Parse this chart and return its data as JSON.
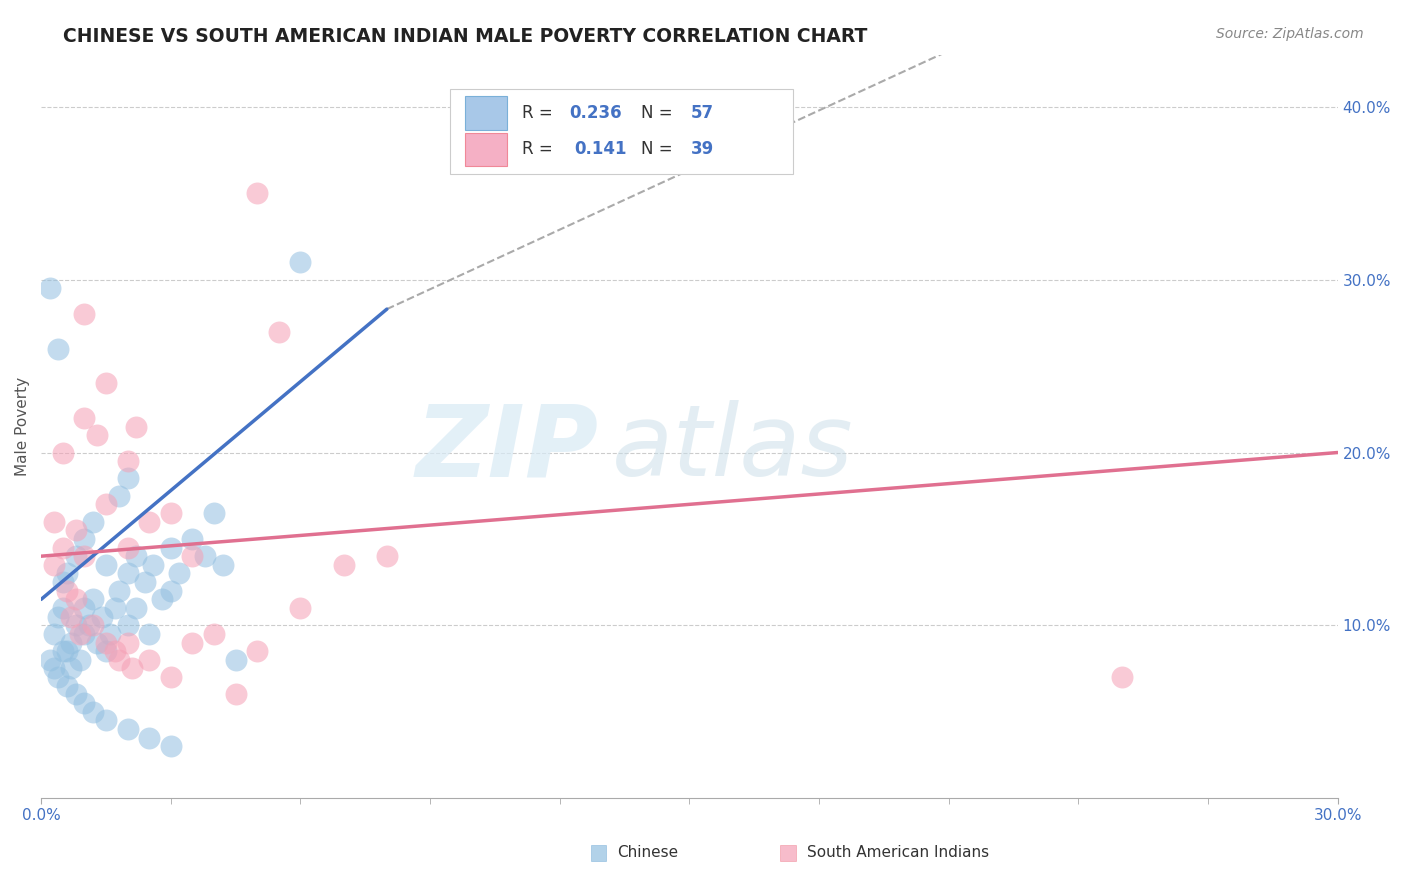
{
  "title": "CHINESE VS SOUTH AMERICAN INDIAN MALE POVERTY CORRELATION CHART",
  "source": "Source: ZipAtlas.com",
  "ylabel_label": "Male Poverty",
  "xlim": [
    0.0,
    30.0
  ],
  "ylim": [
    0.0,
    43.0
  ],
  "watermark_zip": "ZIP",
  "watermark_atlas": "atlas",
  "chinese_color": "#92bfe0",
  "sam_indian_color": "#f5a0b5",
  "chinese_line_color": "#4472c4",
  "sam_line_color": "#e07090",
  "dashed_line_color": "#aaaaaa",
  "legend_box_color": "#f5f5f5",
  "legend_r1": "R = 0.236",
  "legend_n1": "N = 57",
  "legend_r2": "R =  0.141",
  "legend_n2": "N = 39",
  "legend_blue_box": "#a8c8e8",
  "legend_pink_box": "#f5b0c5",
  "blue_r_val": "0.236",
  "pink_r_val": "0.141",
  "blue_n_val": "57",
  "pink_n_val": "39",
  "bottom_label_chinese": "Chinese",
  "bottom_label_sam": "South American Indians",
  "chinese_scatter": [
    [
      0.2,
      8.0
    ],
    [
      0.3,
      9.5
    ],
    [
      0.4,
      10.5
    ],
    [
      0.5,
      11.0
    ],
    [
      0.5,
      12.5
    ],
    [
      0.6,
      8.5
    ],
    [
      0.6,
      13.0
    ],
    [
      0.7,
      9.0
    ],
    [
      0.8,
      10.0
    ],
    [
      0.8,
      14.0
    ],
    [
      0.9,
      8.0
    ],
    [
      1.0,
      9.5
    ],
    [
      1.0,
      11.0
    ],
    [
      1.0,
      15.0
    ],
    [
      1.1,
      10.0
    ],
    [
      1.2,
      11.5
    ],
    [
      1.2,
      16.0
    ],
    [
      1.3,
      9.0
    ],
    [
      1.4,
      10.5
    ],
    [
      1.5,
      8.5
    ],
    [
      1.5,
      13.5
    ],
    [
      1.6,
      9.5
    ],
    [
      1.7,
      11.0
    ],
    [
      1.8,
      12.0
    ],
    [
      1.8,
      17.5
    ],
    [
      2.0,
      10.0
    ],
    [
      2.0,
      13.0
    ],
    [
      2.0,
      18.5
    ],
    [
      2.2,
      11.0
    ],
    [
      2.2,
      14.0
    ],
    [
      2.4,
      12.5
    ],
    [
      2.5,
      9.5
    ],
    [
      2.6,
      13.5
    ],
    [
      2.8,
      11.5
    ],
    [
      3.0,
      12.0
    ],
    [
      3.0,
      14.5
    ],
    [
      3.2,
      13.0
    ],
    [
      3.5,
      15.0
    ],
    [
      3.8,
      14.0
    ],
    [
      4.0,
      16.5
    ],
    [
      4.2,
      13.5
    ],
    [
      4.5,
      8.0
    ],
    [
      0.3,
      7.5
    ],
    [
      0.4,
      7.0
    ],
    [
      0.5,
      8.5
    ],
    [
      0.6,
      6.5
    ],
    [
      0.7,
      7.5
    ],
    [
      0.8,
      6.0
    ],
    [
      1.0,
      5.5
    ],
    [
      1.2,
      5.0
    ],
    [
      1.5,
      4.5
    ],
    [
      2.0,
      4.0
    ],
    [
      2.5,
      3.5
    ],
    [
      3.0,
      3.0
    ],
    [
      6.0,
      31.0
    ],
    [
      0.2,
      29.5
    ],
    [
      0.4,
      26.0
    ]
  ],
  "sam_scatter": [
    [
      0.3,
      13.5
    ],
    [
      0.5,
      14.5
    ],
    [
      0.6,
      12.0
    ],
    [
      0.7,
      10.5
    ],
    [
      0.8,
      11.5
    ],
    [
      0.9,
      9.5
    ],
    [
      1.0,
      14.0
    ],
    [
      1.0,
      22.0
    ],
    [
      1.2,
      10.0
    ],
    [
      1.3,
      21.0
    ],
    [
      1.5,
      9.0
    ],
    [
      1.5,
      24.0
    ],
    [
      1.7,
      8.5
    ],
    [
      1.8,
      8.0
    ],
    [
      2.0,
      9.0
    ],
    [
      2.0,
      14.5
    ],
    [
      2.1,
      7.5
    ],
    [
      2.2,
      21.5
    ],
    [
      2.5,
      8.0
    ],
    [
      2.5,
      16.0
    ],
    [
      3.0,
      7.0
    ],
    [
      3.5,
      14.0
    ],
    [
      4.0,
      9.5
    ],
    [
      4.5,
      6.0
    ],
    [
      5.0,
      8.5
    ],
    [
      5.0,
      35.0
    ],
    [
      5.5,
      27.0
    ],
    [
      6.0,
      11.0
    ],
    [
      7.0,
      13.5
    ],
    [
      3.0,
      16.5
    ],
    [
      2.0,
      19.5
    ],
    [
      1.5,
      17.0
    ],
    [
      0.8,
      15.5
    ],
    [
      0.5,
      20.0
    ],
    [
      0.3,
      16.0
    ],
    [
      25.0,
      7.0
    ],
    [
      8.0,
      14.0
    ],
    [
      3.5,
      9.0
    ],
    [
      1.0,
      28.0
    ]
  ],
  "blue_line_x": [
    0.0,
    8.0
  ],
  "blue_line_y_start": 11.5,
  "blue_line_slope": 2.1,
  "pink_line_x": [
    0.0,
    30.0
  ],
  "pink_line_y_start": 14.0,
  "pink_line_slope": 0.2,
  "dash_line_x": [
    8.0,
    30.0
  ],
  "dash_line_slope": 1.15,
  "dash_line_y_at8": 28.3
}
